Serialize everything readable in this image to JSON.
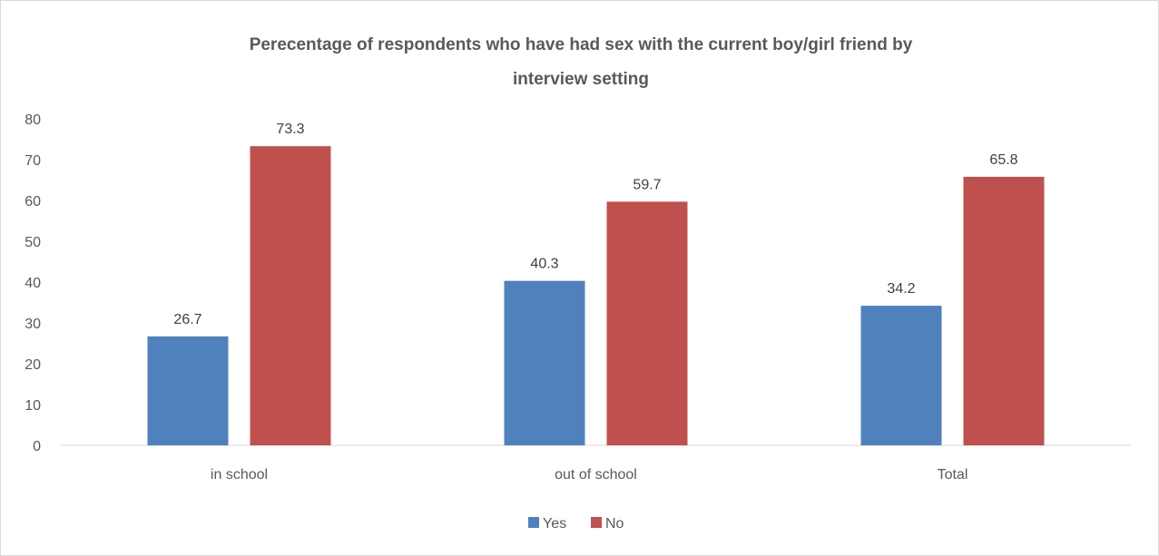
{
  "chart_data": {
    "type": "bar",
    "title_lines": [
      "Perecentage of respondents who have had sex with the current boy/girl friend by",
      "interview setting"
    ],
    "categories": [
      "in school",
      "out of school",
      "Total"
    ],
    "series": [
      {
        "name": "Yes",
        "color": "#4f81bd",
        "values": [
          26.7,
          40.3,
          34.2
        ]
      },
      {
        "name": "No",
        "color": "#c0504d",
        "values": [
          73.3,
          59.7,
          65.8
        ]
      }
    ],
    "ylim": [
      0,
      80
    ],
    "yticks": [
      "0",
      "10",
      "20",
      "30",
      "40",
      "50",
      "60",
      "70",
      "80"
    ],
    "gridlines": false,
    "legend_position": "bottom"
  }
}
